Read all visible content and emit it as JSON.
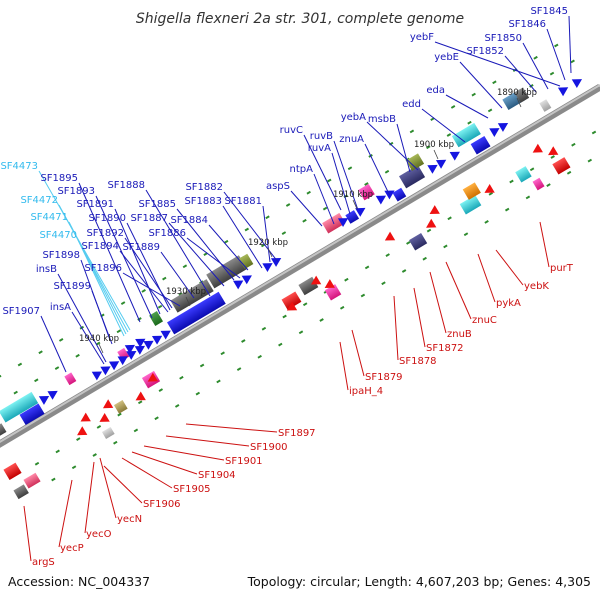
{
  "title": "Shigella flexneri 2a str. 301, complete genome",
  "accession_text": "Accession: NC_004337",
  "topology_text": "Topology: circular; Length: 4,607,203 bp; Genes: 4,305",
  "colors": {
    "forward_label": "#1a1ab8",
    "reverse_label": "#cc1111",
    "highlight_label": "#33bbee",
    "backbone": "#8a8a8a",
    "orf_tick": "#2e8b2e",
    "arrow_blue": "#1515e0"
  },
  "kbp_ticks": [
    "1890 kbp",
    "1900 kbp",
    "1910 kbp",
    "1920 kbp",
    "1930 kbp",
    "1940 kbp"
  ],
  "forward_labels": [
    "SF1845",
    "SF1846",
    "yebF",
    "SF1850",
    "SF1852",
    "yebE",
    "eda",
    "edd",
    "yebA",
    "msbB",
    "ruvC",
    "ruvB",
    "znuA",
    "ruvA",
    "ntpA",
    "aspS",
    "SF1882",
    "SF1888",
    "SF1885",
    "SF1883",
    "SF1881",
    "SF1887",
    "SF1884",
    "SF1886",
    "SF1895",
    "SF1893",
    "SF1891",
    "SF1890",
    "SF1892",
    "SF1894",
    "SF1889",
    "SF1898",
    "insB",
    "SF1896",
    "SF1899",
    "insA",
    "SF1907"
  ],
  "highlight_labels": [
    "SF4473",
    "SF4472",
    "SF4471",
    "SF4470"
  ],
  "reverse_labels": [
    "purT",
    "yebK",
    "pykA",
    "znuC",
    "znuB",
    "SF1872",
    "SF1878",
    "SF1879",
    "ipaH_4",
    "SF1897",
    "SF1900",
    "SF1901",
    "SF1904",
    "SF1905",
    "SF1906",
    "yecN",
    "yecO",
    "yecP",
    "argS"
  ]
}
